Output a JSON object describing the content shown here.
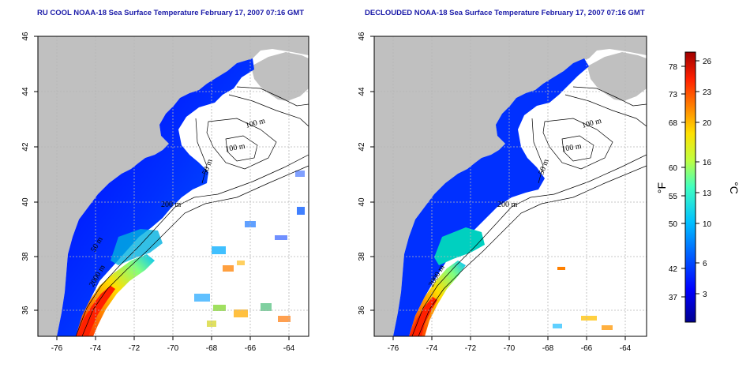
{
  "panels": {
    "left": {
      "title": "RU COOL NOAA-18 Sea Surface Temperature February 17, 2007 07:16 GMT"
    },
    "right": {
      "title": "DECLOUDED NOAA-18 Sea Surface Temperature February 17, 2007 07:16 GMT"
    }
  },
  "axes": {
    "lon_ticks": [
      "-76",
      "-74",
      "-72",
      "-70",
      "-68",
      "-66",
      "-64"
    ],
    "lat_ticks": [
      "46",
      "44",
      "42",
      "40",
      "38",
      "36"
    ]
  },
  "contours": {
    "left": [
      "100 m",
      "100 m",
      "50 m",
      "200 m",
      "50 m",
      "2000 m"
    ],
    "right": [
      "100 m",
      "100 m",
      "50 m",
      "200 m",
      "2000 m"
    ]
  },
  "colorbar": {
    "fahrenheit_ticks": [
      "78",
      "73",
      "68",
      "60",
      "55",
      "50",
      "42",
      "37"
    ],
    "celsius_ticks": [
      "26",
      "23",
      "20",
      "16",
      "13",
      "10",
      "6",
      "3"
    ],
    "unit_f": "°F",
    "unit_c": "°C",
    "colors": [
      "#00008f",
      "#0000ff",
      "#0060ff",
      "#00c0ff",
      "#40ffc0",
      "#c0ff40",
      "#ffe000",
      "#ff8000",
      "#ff2000",
      "#a00000"
    ]
  },
  "colors": {
    "land": "#c0c0c0",
    "grid": "#b5b5b5",
    "title": "#1a1aa8"
  }
}
